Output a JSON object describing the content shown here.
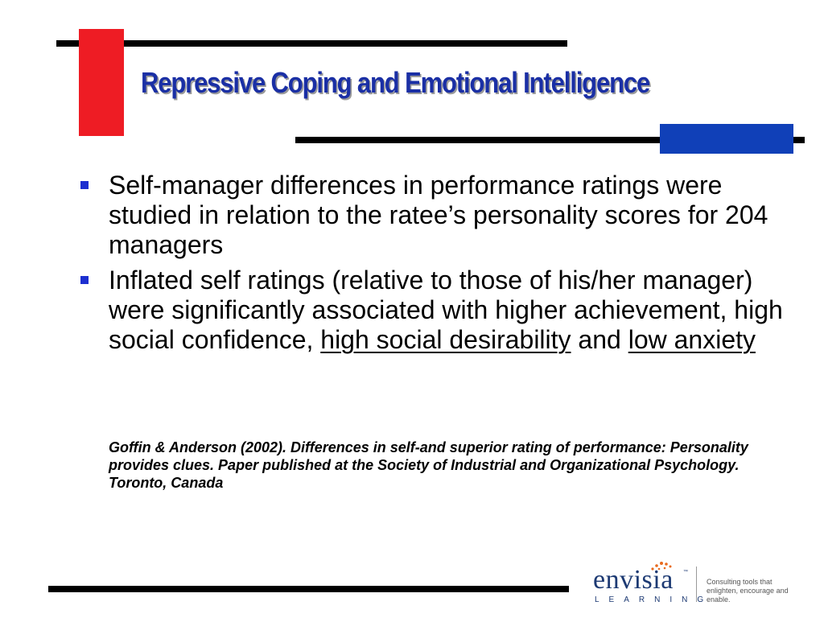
{
  "slide": {
    "title": "Repressive Coping and Emotional Intelligence",
    "bullets": [
      {
        "text": "Self-manager differences in performance ratings were studied in relation to the ratee’s personality scores for 204 managers"
      },
      {
        "text_before": "Inflated self ratings (relative to those of his/her manager) were significantly associated with higher achievement, high social confidence, ",
        "underline_1": "high social desirability",
        "text_middle": " and ",
        "underline_2": "low anxiety"
      }
    ],
    "citation": "Goffin & Anderson (2002). Differences in self-and superior rating of performance: Personality provides clues.  Paper published at the Society of Industrial and Organizational Psychology. Toronto, Canada"
  },
  "logo": {
    "word": "envisia",
    "trademark": "™",
    "sub": "LEARNING",
    "tagline": "Consulting tools that enlighten, encourage and enable."
  },
  "colors": {
    "title": "#1a2fa5",
    "accent_red": "#ee1c24",
    "accent_blue": "#1040b8",
    "bullet": "#1d2fd0",
    "logo_dots": "#e86a1e"
  }
}
